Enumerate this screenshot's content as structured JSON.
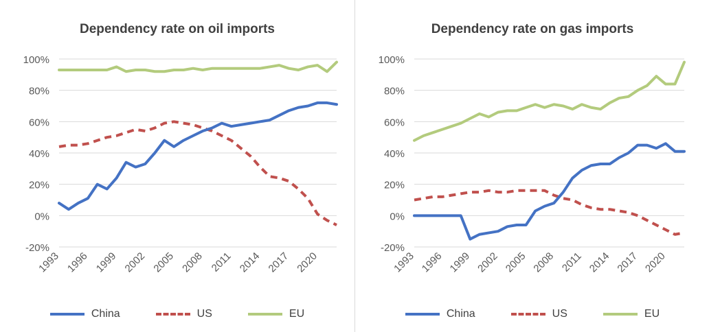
{
  "colors": {
    "China": "#4472c4",
    "US": "#c0504d",
    "EU": "#b3cb7d",
    "grid": "#d9d9d9",
    "text": "#595959"
  },
  "chart_data": [
    {
      "type": "line",
      "title": "Dependency rate on oil imports",
      "x": [
        1993,
        1994,
        1995,
        1996,
        1997,
        1998,
        1999,
        2000,
        2001,
        2002,
        2003,
        2004,
        2005,
        2006,
        2007,
        2008,
        2009,
        2010,
        2011,
        2012,
        2013,
        2014,
        2015,
        2016,
        2017,
        2018,
        2019,
        2020,
        2021,
        2022
      ],
      "x_tick_labels": [
        "1993",
        "1996",
        "1999",
        "2002",
        "2005",
        "2008",
        "2011",
        "2014",
        "2017",
        "2020"
      ],
      "ylim": [
        -20,
        100
      ],
      "y_tick_labels": [
        "-20%",
        "0%",
        "20%",
        "40%",
        "60%",
        "80%",
        "100%"
      ],
      "grid": true,
      "legend_position": "bottom",
      "series": [
        {
          "name": "China",
          "style": "solid",
          "values": [
            8,
            4,
            8,
            11,
            20,
            17,
            24,
            34,
            31,
            33,
            40,
            48,
            44,
            48,
            51,
            54,
            56,
            59,
            57,
            58,
            59,
            60,
            61,
            64,
            67,
            69,
            70,
            72,
            72,
            71
          ]
        },
        {
          "name": "US",
          "style": "dashed",
          "values": [
            44,
            45,
            45,
            46,
            48,
            50,
            51,
            53,
            55,
            54,
            56,
            59,
            60,
            59,
            58,
            56,
            54,
            51,
            48,
            43,
            38,
            31,
            25,
            24,
            22,
            17,
            11,
            1,
            -3,
            -6
          ]
        },
        {
          "name": "EU",
          "style": "solid",
          "values": [
            93,
            93,
            93,
            93,
            93,
            93,
            95,
            92,
            93,
            93,
            92,
            92,
            93,
            93,
            94,
            93,
            94,
            94,
            94,
            94,
            94,
            94,
            95,
            96,
            94,
            93,
            95,
            96,
            92,
            98
          ]
        }
      ]
    },
    {
      "type": "line",
      "title": "Dependency rate on gas imports",
      "x": [
        1993,
        1994,
        1995,
        1996,
        1997,
        1998,
        1999,
        2000,
        2001,
        2002,
        2003,
        2004,
        2005,
        2006,
        2007,
        2008,
        2009,
        2010,
        2011,
        2012,
        2013,
        2014,
        2015,
        2016,
        2017,
        2018,
        2019,
        2020,
        2021,
        2022
      ],
      "x_tick_labels": [
        "1993",
        "1996",
        "1999",
        "2002",
        "2005",
        "2008",
        "2011",
        "2014",
        "2017",
        "2020"
      ],
      "ylim": [
        -20,
        100
      ],
      "y_tick_labels": [
        "-20%",
        "0%",
        "20%",
        "40%",
        "60%",
        "80%",
        "100%"
      ],
      "grid": true,
      "legend_position": "bottom",
      "series": [
        {
          "name": "China",
          "style": "solid",
          "values": [
            0,
            0,
            0,
            0,
            0,
            0,
            -15,
            -12,
            -11,
            -10,
            -7,
            -6,
            -6,
            3,
            6,
            8,
            15,
            24,
            29,
            32,
            33,
            33,
            37,
            40,
            45,
            45,
            43,
            46,
            41,
            41
          ]
        },
        {
          "name": "US",
          "style": "dashed",
          "values": [
            10,
            11,
            12,
            12,
            13,
            14,
            15,
            15,
            16,
            15,
            15,
            16,
            16,
            16,
            16,
            13,
            11,
            10,
            7,
            5,
            4,
            4,
            3,
            2,
            0,
            -3,
            -6,
            -9,
            -12,
            -11
          ]
        },
        {
          "name": "EU",
          "style": "solid",
          "values": [
            48,
            51,
            53,
            55,
            57,
            59,
            62,
            65,
            63,
            66,
            67,
            67,
            69,
            71,
            69,
            71,
            70,
            68,
            71,
            69,
            68,
            72,
            75,
            76,
            80,
            83,
            89,
            84,
            84,
            98
          ]
        }
      ]
    }
  ]
}
